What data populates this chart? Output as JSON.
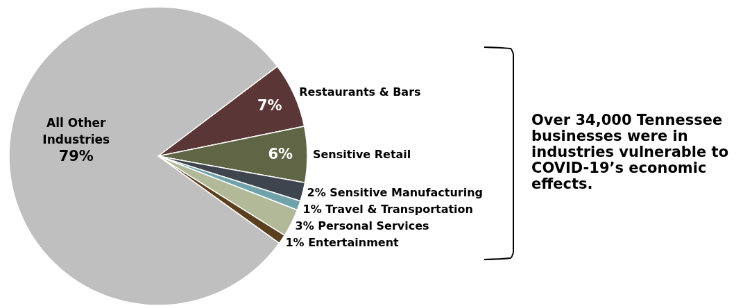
{
  "chart_data": {
    "type": "pie",
    "categories": [
      "Restaurants & Bars",
      "Sensitive Retail",
      "Sensitive Manufacturing",
      "Travel & Transportation",
      "Personal Services",
      "Entertainment",
      "All Other Industries"
    ],
    "values": [
      7,
      6,
      2,
      1,
      3,
      1,
      79
    ],
    "value_labels": [
      "7%",
      "6%",
      "2%",
      "1%",
      "3%",
      "1%",
      "79%"
    ],
    "colors": [
      "#5a3636",
      "#5f6545",
      "#3e454e",
      "#6fa2aa",
      "#b1b999",
      "#5b401f",
      "#bfbfbf"
    ],
    "annotations": [
      "Over 34,000 Tennessee businesses were in industries vulnerable to COVID-19’s economic effects."
    ]
  }
}
